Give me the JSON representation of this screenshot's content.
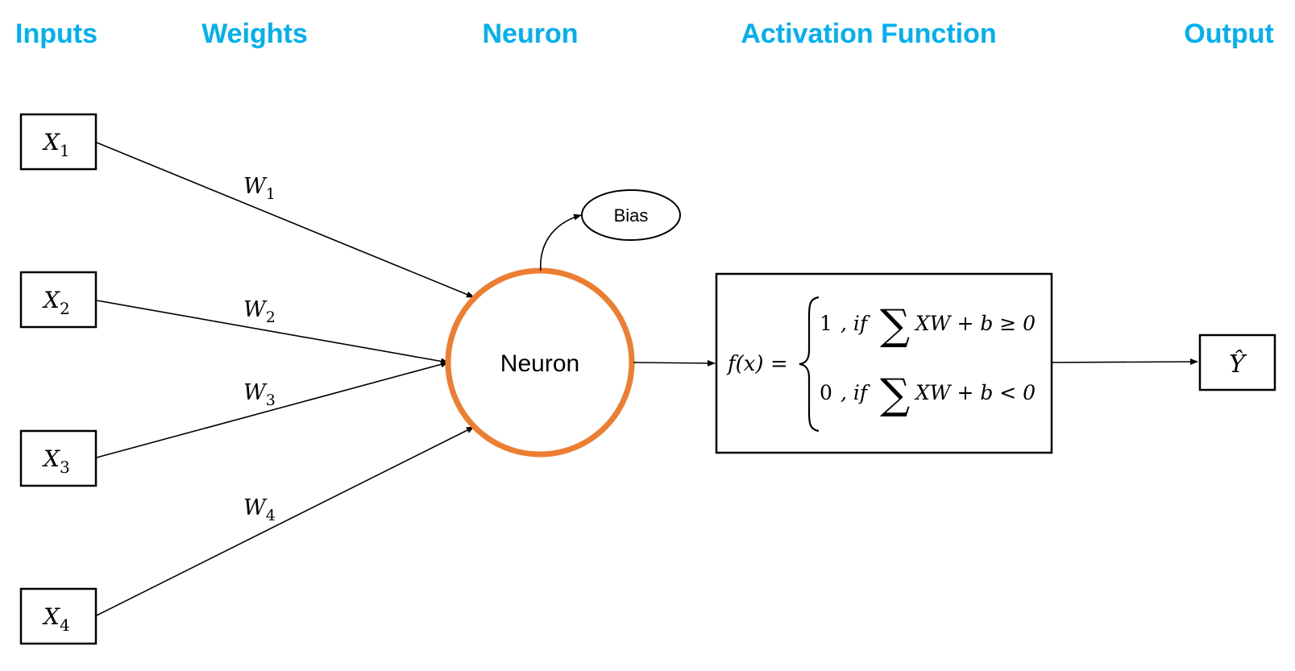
{
  "headers": {
    "inputs": "Inputs",
    "weights": "Weights",
    "neuron": "Neuron",
    "activation": "Activation Function",
    "output": "Output"
  },
  "inputs": [
    {
      "var": "X",
      "sub": "1"
    },
    {
      "var": "X",
      "sub": "2"
    },
    {
      "var": "X",
      "sub": "3"
    },
    {
      "var": "X",
      "sub": "4"
    }
  ],
  "weights": [
    {
      "var": "W",
      "sub": "1"
    },
    {
      "var": "W",
      "sub": "2"
    },
    {
      "var": "W",
      "sub": "3"
    },
    {
      "var": "W",
      "sub": "4"
    }
  ],
  "neuron": {
    "label": "Neuron"
  },
  "bias": {
    "label": "Bias"
  },
  "activation": {
    "lhs": "f(x) =",
    "case1_value": "1",
    "case1_cond": ", if",
    "case1_expr": "XW + b ≥ 0",
    "case2_value": "0",
    "case2_cond": ", if",
    "case2_expr": "XW + b < 0",
    "sum_symbol": "∑"
  },
  "output": {
    "label": "Ŷ"
  },
  "colors": {
    "header": "#00b0f0",
    "neuron_ring": "#ed7d31",
    "stroke": "#000000"
  }
}
